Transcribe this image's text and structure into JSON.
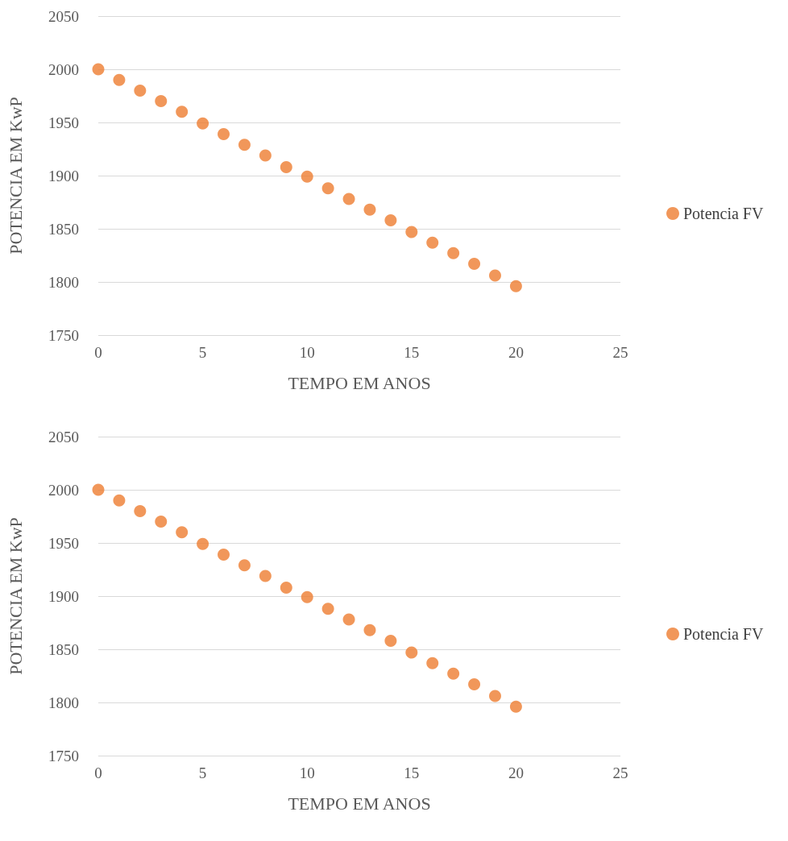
{
  "chart_data": [
    {
      "type": "scatter",
      "xlabel": "TEMPO EM ANOS",
      "ylabel": "POTENCIA EM KwP",
      "x": [
        0,
        1,
        2,
        3,
        4,
        5,
        6,
        7,
        8,
        9,
        10,
        11,
        12,
        13,
        14,
        15,
        16,
        17,
        18,
        19,
        20
      ],
      "series": [
        {
          "name": "Potencia FV",
          "color": "#ed7d31",
          "values": [
            2000,
            1990,
            1980,
            1970,
            1960,
            1949,
            1939,
            1929,
            1919,
            1908,
            1899,
            1888,
            1878,
            1868,
            1858,
            1847,
            1837,
            1827,
            1817,
            1806,
            1796
          ]
        }
      ],
      "xlim": [
        0,
        25
      ],
      "xticks": [
        0,
        5,
        10,
        15,
        20,
        25
      ],
      "ylim": [
        1750,
        2050
      ],
      "yticks": [
        1750,
        1800,
        1850,
        1900,
        1950,
        2000,
        2050
      ],
      "grid": "y",
      "legend": "right",
      "marker": "circle"
    },
    {
      "type": "scatter",
      "xlabel": "TEMPO EM ANOS",
      "ylabel": "POTENCIA EM KwP",
      "x": [
        0,
        1,
        2,
        3,
        4,
        5,
        6,
        7,
        8,
        9,
        10,
        11,
        12,
        13,
        14,
        15,
        16,
        17,
        18,
        19,
        20
      ],
      "series": [
        {
          "name": "Potencia FV",
          "color": "#ed7d31",
          "values": [
            2000,
            1990,
            1980,
            1970,
            1960,
            1949,
            1939,
            1929,
            1919,
            1908,
            1899,
            1888,
            1878,
            1868,
            1858,
            1847,
            1837,
            1827,
            1817,
            1806,
            1796
          ]
        }
      ],
      "xlim": [
        0,
        25
      ],
      "xticks": [
        0,
        5,
        10,
        15,
        20,
        25
      ],
      "ylim": [
        1750,
        2050
      ],
      "yticks": [
        1750,
        1800,
        1850,
        1900,
        1950,
        2000,
        2050
      ],
      "grid": "y",
      "legend": "right",
      "marker": "circle"
    }
  ]
}
